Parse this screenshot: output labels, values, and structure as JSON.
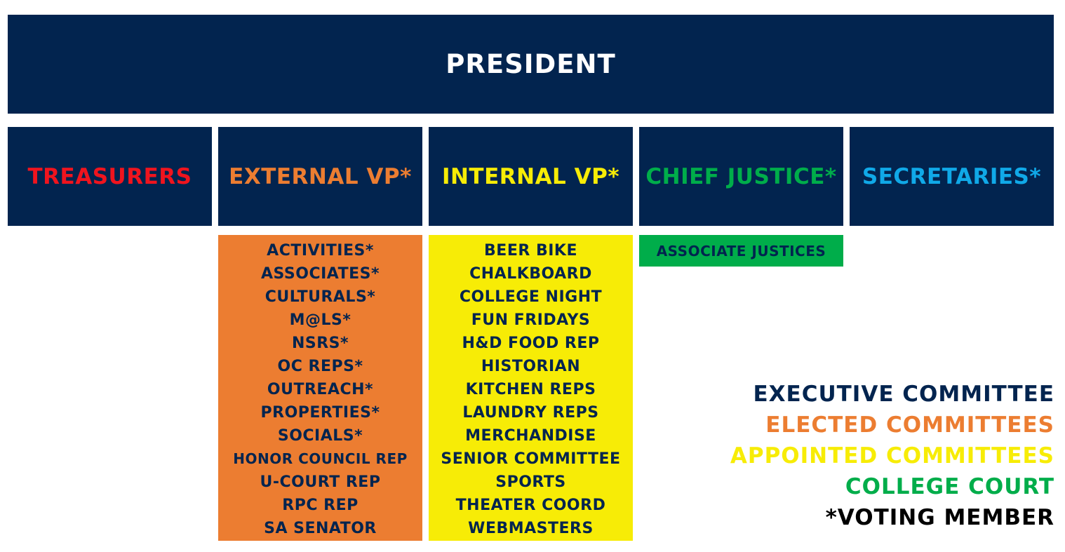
{
  "colors": {
    "navy": "#02244f",
    "red": "#f0141e",
    "orange": "#ec7d31",
    "yellow": "#f7ec06",
    "green": "#00ad4a",
    "blue": "#10a9e8",
    "black": "#000000"
  },
  "president": "PRESIDENT",
  "officers": [
    {
      "label": "TREASURERS",
      "color": "#f0141e"
    },
    {
      "label": "EXTERNAL VP*",
      "color": "#ec7d31"
    },
    {
      "label": "INTERNAL VP*",
      "color": "#f7ec06"
    },
    {
      "label": "CHIEF JUSTICE*",
      "color": "#00ad4a"
    },
    {
      "label": "SECRETARIES*",
      "color": "#10a9e8"
    }
  ],
  "elected_committees": [
    "ACTIVITIES*",
    "ASSOCIATES*",
    "CULTURALS*",
    "M@LS*",
    "NSRS*",
    "OC REPS*",
    "OUTREACH*",
    "PROPERTIES*",
    "SOCIALS*",
    "HONOR COUNCIL REP",
    "U-COURT REP",
    "RPC REP",
    "SA SENATOR"
  ],
  "appointed_committees": [
    "BEER BIKE",
    "CHALKBOARD",
    "COLLEGE NIGHT",
    "FUN FRIDAYS",
    "H&D FOOD REP",
    "HISTORIAN",
    "KITCHEN REPS",
    "LAUNDRY REPS",
    "MERCHANDISE",
    "SENIOR COMMITTEE",
    "SPORTS",
    "THEATER COORD",
    "WEBMASTERS"
  ],
  "college_court": "ASSOCIATE JUSTICES",
  "legend": [
    {
      "label": "EXECUTIVE COMMITTEE",
      "color": "#02244f"
    },
    {
      "label": "ELECTED COMMITTEES",
      "color": "#ec7d31"
    },
    {
      "label": "APPOINTED COMMITTEES",
      "color": "#f7ec06"
    },
    {
      "label": "COLLEGE COURT",
      "color": "#00ad4a"
    },
    {
      "label": "*VOTING MEMBER",
      "color": "#000000"
    }
  ]
}
